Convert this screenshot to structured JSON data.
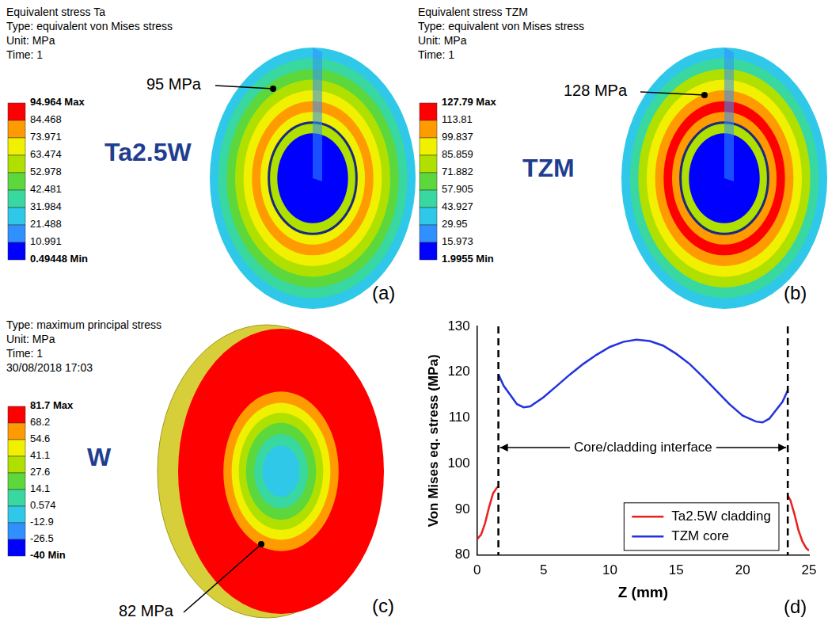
{
  "panels": [
    {
      "letter": "(a)",
      "header": [
        "Equivalent stress Ta",
        "Type: equivalent von Mises stress",
        "Unit: MPa",
        "Time: 1"
      ],
      "material": "Ta2.5W",
      "annotation": "95 MPa",
      "colorbar": {
        "ticks": [
          {
            "value": 94.964,
            "label": "94.964 Max"
          },
          84.468,
          73.971,
          63.474,
          52.978,
          42.481,
          31.984,
          21.488,
          10.991,
          {
            "value": 0.49448,
            "label": "0.49448 Min"
          }
        ],
        "colors": [
          "#ff0000",
          "#ff9a00",
          "#f0f000",
          "#b0e000",
          "#5cd83c",
          "#38d8a0",
          "#30c8e8",
          "#3090ff",
          "#0000ff"
        ]
      }
    },
    {
      "letter": "(b)",
      "header": [
        "Equivalent stress TZM",
        "Type: equivalent von Mises stress",
        "Unit: MPa",
        "Time: 1"
      ],
      "material": "TZM",
      "annotation": "128 MPa",
      "colorbar": {
        "ticks": [
          {
            "value": 127.79,
            "label": "127.79 Max"
          },
          113.81,
          99.837,
          85.859,
          71.882,
          57.905,
          43.927,
          29.95,
          15.973,
          {
            "value": 1.9955,
            "label": "1.9955 Min"
          }
        ],
        "colors": [
          "#ff0000",
          "#ff9a00",
          "#f0f000",
          "#b0e000",
          "#5cd83c",
          "#38d8a0",
          "#30c8e8",
          "#3090ff",
          "#0000ff"
        ]
      }
    },
    {
      "letter": "(c)",
      "header": [
        "Type: maximum principal stress",
        "Unit: MPa",
        "Time: 1",
        "30/08/2018 17:03"
      ],
      "material": "W",
      "annotation": "82 MPa",
      "colorbar": {
        "ticks": [
          {
            "value": 81.7,
            "label": "81.7 Max"
          },
          68.2,
          54.6,
          41.1,
          27.6,
          14.1,
          0.574,
          -12.9,
          -26.5,
          {
            "value": -40,
            "label": "-40 Min"
          }
        ],
        "colors": [
          "#ff0000",
          "#ff9a00",
          "#f0f000",
          "#b0e000",
          "#5cd83c",
          "#38d8a0",
          "#30c8e8",
          "#3090ff",
          "#0000ff"
        ]
      }
    }
  ],
  "chart_data": {
    "type": "line",
    "letter": "(d)",
    "xlabel": "Z (mm)",
    "ylabel": "Von Mises eq. stress (MPa)",
    "xlim": [
      0,
      25
    ],
    "xticks": [
      0,
      5,
      10,
      15,
      20,
      25
    ],
    "ylim": [
      80,
      130
    ],
    "yticks": [
      80,
      90,
      100,
      110,
      120,
      130
    ],
    "grid": false,
    "legend": "lower right",
    "interfaces": [
      1.6,
      23.4
    ],
    "annotation": "Core/cladding interface",
    "series": [
      {
        "name": "Ta2.5W cladding",
        "color": "#e8211f",
        "x": [
          0,
          0.3,
          0.6,
          0.9,
          1.2,
          1.5,
          1.6,
          12.5,
          23.4,
          23.6,
          23.9,
          24.2,
          24.5,
          24.8,
          25
        ],
        "values": [
          83.5,
          84.5,
          87,
          90.5,
          93.5,
          94.8,
          95,
          null,
          93,
          92,
          89,
          85.5,
          83,
          81.5,
          81
        ]
      },
      {
        "name": "TZM core",
        "color": "#2233dd",
        "x": [
          1.6,
          2,
          3,
          3.5,
          4,
          5,
          6,
          7,
          8,
          9,
          10,
          11,
          12,
          13,
          14,
          15,
          16,
          17,
          18,
          19,
          20,
          21,
          21.5,
          22,
          23,
          23.4
        ],
        "values": [
          119.5,
          117,
          113,
          112.3,
          112.5,
          114.5,
          117,
          119.5,
          121.8,
          123.8,
          125.5,
          126.6,
          127.1,
          126.8,
          125.8,
          124,
          121.8,
          119,
          116,
          113,
          110.5,
          109.2,
          109,
          109.8,
          113.5,
          116
        ]
      }
    ]
  }
}
